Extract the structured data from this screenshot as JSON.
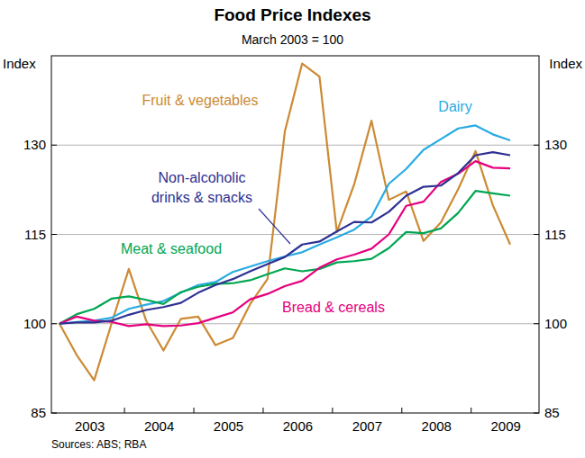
{
  "chart_data": {
    "type": "line",
    "title": "Food Price Indexes",
    "subtitle": "March 2003 = 100",
    "y_label": "Index",
    "source": "Sources: ABS; RBA",
    "categories": [
      null,
      null,
      "2003",
      null,
      null,
      null,
      "2004",
      null,
      null,
      null,
      "2005",
      null,
      null,
      null,
      "2006",
      null,
      null,
      null,
      "2007",
      null,
      null,
      null,
      "2008",
      null,
      null,
      null,
      "2009"
    ],
    "series": [
      {
        "name": "Fruit & vegetables",
        "color": "#cc8a33",
        "values": [
          100,
          94.7,
          90.5,
          100,
          109.2,
          100.5,
          95.5,
          100.8,
          101.2,
          96.4,
          97.6,
          103.3,
          107.5,
          132.3,
          143.7,
          141.5,
          115.4,
          123.4,
          134.1,
          120.8,
          122.2,
          113.9,
          117.0,
          122.6,
          129.0,
          119.9,
          113.3
        ]
      },
      {
        "name": "Dairy",
        "color": "#29abe2",
        "values": [
          100,
          100.3,
          100.5,
          101,
          102.5,
          103.2,
          103.8,
          105.2,
          106.5,
          107,
          108.7,
          109.6,
          110.5,
          111.3,
          112,
          113.3,
          114.5,
          115.8,
          118,
          123.5,
          126,
          129.2,
          131,
          132.8,
          133.3,
          131.8,
          130.8
        ]
      },
      {
        "name": "Meat & seafood",
        "color": "#00a651",
        "values": [
          100,
          101.6,
          102.5,
          104.2,
          104.6,
          104,
          103.3,
          105.3,
          106.2,
          106.7,
          106.8,
          107.3,
          108.3,
          109.3,
          108.8,
          109.2,
          110.3,
          110.5,
          110.9,
          112.7,
          115.4,
          115.2,
          116,
          118.6,
          122.3,
          121.9,
          121.5
        ]
      },
      {
        "name": "Bread & cereals",
        "color": "#e6007e",
        "values": [
          100,
          101.2,
          100.5,
          100.3,
          99.6,
          99.9,
          99.6,
          99.7,
          100.1,
          101,
          101.9,
          104.1,
          105,
          106.3,
          107.2,
          109.4,
          110.8,
          111.6,
          112.6,
          115,
          119.8,
          120.5,
          123.8,
          125.2,
          127.3,
          126.2,
          126.1
        ]
      },
      {
        "name": "Non-alcoholic drinks & snacks",
        "color": "#2e3192",
        "values": [
          100,
          100.2,
          100.2,
          100.5,
          101.5,
          102.3,
          102.8,
          103.5,
          105.2,
          106.5,
          107.5,
          108.8,
          110,
          111.2,
          113.3,
          113.8,
          115.5,
          117.1,
          117,
          118.8,
          121.5,
          123,
          123.2,
          125.3,
          128.3,
          128.8,
          128.3
        ]
      }
    ],
    "ylim": [
      85,
      145
    ],
    "yticks": [
      85,
      100,
      115,
      130
    ],
    "grid": true
  }
}
